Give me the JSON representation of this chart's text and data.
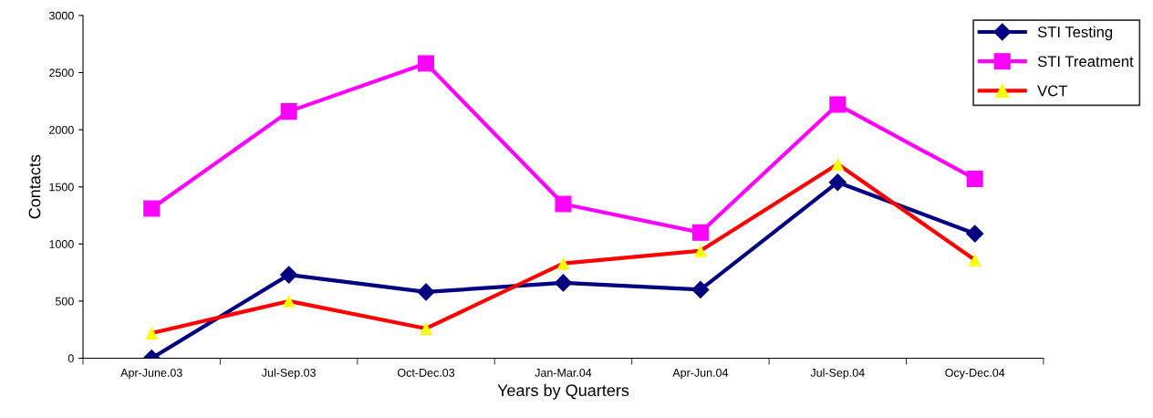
{
  "chart_data": {
    "type": "line",
    "xlabel": "Years by Quarters",
    "ylabel": "Contacts",
    "categories": [
      "Apr-June.03",
      "Jul-Sep.03",
      "Oct-Dec.03",
      "Jan-Mar.04",
      "Apr-Jun.04",
      "Jul-Sep.04",
      "Ocy-Dec.04"
    ],
    "series": [
      {
        "name": "STI Testing",
        "color": "#000080",
        "marker": "diamond",
        "values": [
          0,
          730,
          580,
          660,
          600,
          1540,
          1090
        ]
      },
      {
        "name": "STI Treatment",
        "color": "#ff00ff",
        "marker": "square",
        "values": [
          1310,
          2160,
          2580,
          1350,
          1100,
          2220,
          1570
        ]
      },
      {
        "name": "VCT",
        "color": "#ff0000",
        "marker": "triangle",
        "colors": [
          "#ffff00",
          "#ffff00",
          "#ffff00",
          "#ffff00",
          "#ffff00",
          "#ffff00",
          "#ffff00"
        ],
        "values": [
          220,
          500,
          260,
          830,
          940,
          1700,
          860
        ]
      }
    ],
    "ylim": [
      0,
      3000
    ],
    "yticks": [
      0,
      500,
      1000,
      1500,
      2000,
      2500,
      3000
    ],
    "grid": false,
    "legend": "top right",
    "line_style": "solid"
  }
}
